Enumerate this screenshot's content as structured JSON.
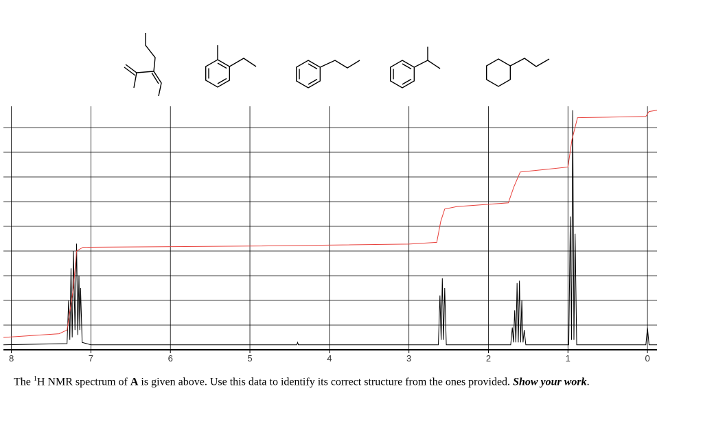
{
  "chart_data": {
    "type": "line",
    "xlim": [
      8.1,
      -0.12
    ],
    "xticks": [
      8,
      7,
      6,
      5,
      4,
      3,
      2,
      1,
      0
    ],
    "ylim": [
      0,
      100
    ],
    "yticks": [
      10,
      20,
      30,
      40,
      50,
      60,
      70,
      80,
      90
    ],
    "grid": true,
    "series": [
      {
        "color": "#000000",
        "x": [
          8.1,
          7.3,
          7.28,
          7.265,
          7.25,
          7.235,
          7.22,
          7.2,
          7.18,
          7.165,
          7.15,
          7.14,
          7.13,
          7.11,
          7.0,
          4.41,
          4.4,
          4.39,
          2.63,
          2.61,
          2.595,
          2.58,
          2.565,
          2.55,
          2.53,
          1.72,
          1.7,
          1.685,
          1.67,
          1.655,
          1.64,
          1.625,
          1.61,
          1.595,
          1.58,
          1.565,
          1.55,
          1.53,
          0.99,
          0.97,
          0.955,
          0.94,
          0.925,
          0.91,
          0.89,
          0.02,
          0.0,
          -0.02,
          -0.12
        ],
        "values": [
          2,
          2.5,
          20,
          4,
          33,
          5,
          40,
          8,
          43,
          6,
          30,
          8,
          25,
          3,
          2,
          2,
          3,
          2,
          2,
          22,
          4,
          29,
          4,
          25,
          2,
          2,
          9,
          3,
          16,
          3,
          27,
          3,
          28,
          3,
          20,
          3,
          8,
          2,
          2,
          54,
          4,
          97,
          4,
          47,
          2,
          2,
          9,
          2,
          2
        ]
      },
      {
        "color": "#e8413c",
        "x": [
          8.1,
          7.4,
          7.3,
          7.22,
          7.18,
          7.1,
          5,
          3,
          2.65,
          2.6,
          2.55,
          2.4,
          1.75,
          1.68,
          1.6,
          1.3,
          1.0,
          0.95,
          0.88,
          0.5,
          0.02,
          -0.02,
          -0.12
        ],
        "values": [
          5,
          6.5,
          8,
          25,
          40,
          41.5,
          42,
          42.8,
          43.5,
          52,
          57,
          58,
          59.5,
          66,
          72,
          73,
          74,
          85,
          94,
          94.2,
          94.5,
          96.5,
          97
        ]
      }
    ]
  },
  "caption": {
    "pre": "The ",
    "sup": "1",
    "mid": "H NMR spectrum of ",
    "bold": "A",
    "rest": " is given above. Use this data to identify its correct structure from the ones provided. ",
    "emph": "Show your work",
    "end": "."
  }
}
